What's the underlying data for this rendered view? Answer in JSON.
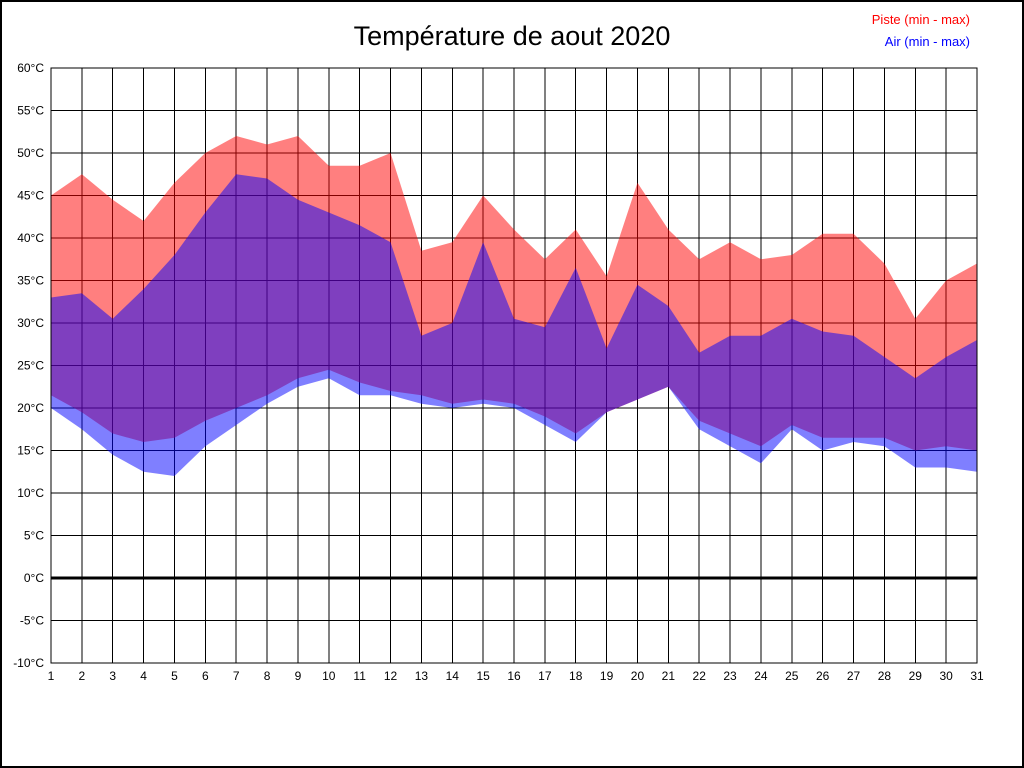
{
  "page": {
    "background": "#ffffff",
    "border_color": "#000000"
  },
  "chart_data": {
    "type": "area",
    "title": "Température de aout 2020",
    "legend_position": "top-right",
    "grid": true,
    "zero_line": 0,
    "ylim": [
      -10,
      60
    ],
    "y_step": 5,
    "y_unit": "°C",
    "y_tick_labels": [
      "60°C",
      "55°C",
      "50°C",
      "45°C",
      "40°C",
      "35°C",
      "30°C",
      "25°C",
      "20°C",
      "15°C",
      "10°C",
      "5°C",
      "0°C",
      "-5°C",
      "-10°C"
    ],
    "x": [
      1,
      2,
      3,
      4,
      5,
      6,
      7,
      8,
      9,
      10,
      11,
      12,
      13,
      14,
      15,
      16,
      17,
      18,
      19,
      20,
      21,
      22,
      23,
      24,
      25,
      26,
      27,
      28,
      29,
      30,
      31
    ],
    "x_tick_labels": [
      "1",
      "2",
      "3",
      "4",
      "5",
      "6",
      "7",
      "8",
      "9",
      "10",
      "11",
      "12",
      "13",
      "14",
      "15",
      "16",
      "17",
      "18",
      "19",
      "20",
      "21",
      "22",
      "23",
      "24",
      "25",
      "26",
      "27",
      "28",
      "29",
      "30",
      "31"
    ],
    "series": [
      {
        "key": "piste",
        "name": "Piste (min - max)",
        "color": "#ff0000",
        "fill_opacity": 0.5,
        "max": [
          45,
          47.5,
          44.5,
          42,
          46.5,
          50,
          52,
          51,
          52,
          48.5,
          48.5,
          50,
          38.5,
          39.5,
          45,
          41,
          37.5,
          41,
          35.5,
          46.5,
          41,
          37.5,
          39.5,
          37.5,
          38,
          40.5,
          40.5,
          37,
          30.5,
          35,
          37
        ],
        "min": [
          21.5,
          19.5,
          17,
          16,
          16.5,
          18.5,
          20,
          21.5,
          23.5,
          24.5,
          23,
          22,
          21.5,
          20.5,
          21,
          20.5,
          19,
          17,
          19.5,
          21,
          22.5,
          18.5,
          17,
          15.5,
          18,
          16.5,
          16.5,
          16.5,
          15,
          15.5,
          15
        ]
      },
      {
        "key": "air",
        "name": "Air (min - max)",
        "color": "#0000ff",
        "fill_opacity": 0.5,
        "max": [
          33,
          33.5,
          30.5,
          34,
          38,
          43,
          47.5,
          47,
          44.5,
          43,
          41.5,
          39.5,
          28.5,
          30,
          39.5,
          30.5,
          29.5,
          36.5,
          27,
          34.5,
          32,
          26.5,
          28.5,
          28.5,
          30.5,
          29,
          28.5,
          26,
          23.5,
          26,
          28
        ],
        "min": [
          20,
          17.5,
          14.5,
          12.5,
          12,
          15.5,
          18,
          20.5,
          22.5,
          23.5,
          21.5,
          21.5,
          20.5,
          20,
          20.5,
          20,
          18,
          16,
          19.5,
          21,
          22.5,
          17.5,
          15.5,
          13.5,
          17.5,
          15,
          16,
          15.5,
          13,
          13,
          12.5
        ]
      }
    ]
  }
}
